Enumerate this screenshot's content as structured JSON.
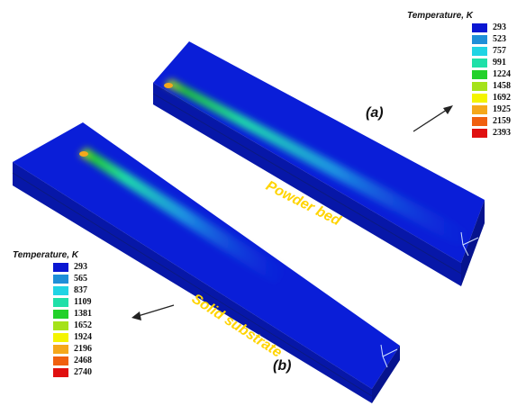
{
  "legend_a": {
    "title": "Temperature, K",
    "values": [
      "293",
      "523",
      "757",
      "991",
      "1224",
      "1458",
      "1692",
      "1925",
      "2159",
      "2393"
    ],
    "colors": [
      "#0a16d2",
      "#1f8fd8",
      "#20d4e4",
      "#1fe0a8",
      "#22d12a",
      "#a5e21a",
      "#f4f400",
      "#f5a81b",
      "#f06010",
      "#e01010"
    ]
  },
  "legend_b": {
    "title": "Temperature, K",
    "values": [
      "293",
      "565",
      "837",
      "1109",
      "1381",
      "1652",
      "1924",
      "2196",
      "2468",
      "2740"
    ],
    "colors": [
      "#0a16d2",
      "#1f8fd8",
      "#20d4e4",
      "#1fe0a8",
      "#22d12a",
      "#a5e21a",
      "#f4f400",
      "#f5a81b",
      "#f06010",
      "#e01010"
    ]
  },
  "plate_a": {
    "caption": "(a)",
    "label": "Powder bed"
  },
  "plate_b": {
    "caption": "(b)",
    "label": "Solid substrate"
  }
}
